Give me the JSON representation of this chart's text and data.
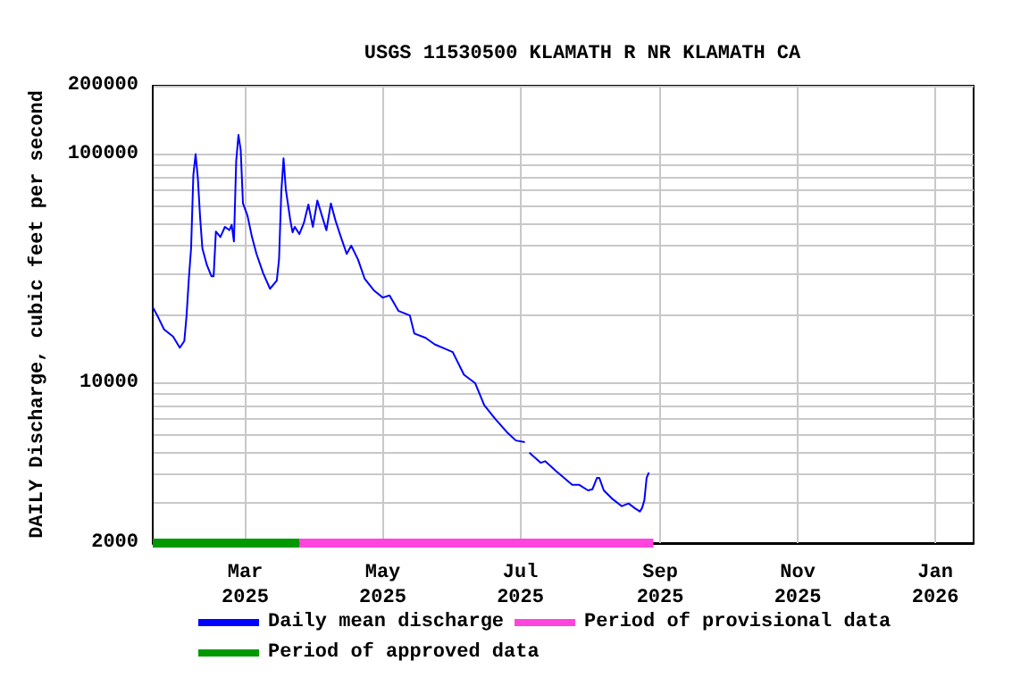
{
  "chart_data": {
    "type": "line",
    "title": "USGS 11530500 KLAMATH R NR KLAMATH CA",
    "ylabel": "DAILY Discharge, cubic feet per second",
    "log": "y",
    "grid": true,
    "legend": "bottom",
    "marker": "none",
    "xlim": [
      "2025-01-19",
      "2026-01-18"
    ],
    "xticks": [
      {
        "value": "2025-03-01",
        "label": "Mar\n2025"
      },
      {
        "value": "2025-05-01",
        "label": "May\n2025"
      },
      {
        "value": "2025-07-01",
        "label": "Jul\n2025"
      },
      {
        "value": "2025-09-01",
        "label": "Sep\n2025"
      },
      {
        "value": "2025-11-01",
        "label": "Nov\n2025"
      },
      {
        "value": "2026-01-01",
        "label": "Jan\n2026"
      }
    ],
    "ylim": [
      2000,
      200000
    ],
    "yticks": [
      2000,
      {
        "value": 3000,
        "label": null
      },
      {
        "value": 4000,
        "label": null
      },
      {
        "value": 5000,
        "label": null
      },
      {
        "value": 6000,
        "label": null
      },
      {
        "value": 7000,
        "label": null
      },
      {
        "value": 8000,
        "label": null
      },
      {
        "value": 9000,
        "label": null
      },
      10000,
      {
        "value": 20000,
        "label": null
      },
      {
        "value": 30000,
        "label": null
      },
      {
        "value": 40000,
        "label": null
      },
      {
        "value": 50000,
        "label": null
      },
      {
        "value": 60000,
        "label": null
      },
      {
        "value": 70000,
        "label": null
      },
      {
        "value": 80000,
        "label": null
      },
      {
        "value": 90000,
        "label": null
      },
      100000,
      200000
    ],
    "series": [
      {
        "name": "Daily mean discharge",
        "color": "#0000ff",
        "x": [
          "2025-01-19",
          "2025-01-21",
          "2025-01-24",
          "2025-01-28",
          "2025-01-31",
          "2025-02-02",
          "2025-02-03",
          "2025-02-04",
          "2025-02-05",
          "2025-02-06",
          "2025-02-07",
          "2025-02-08",
          "2025-02-09",
          "2025-02-10",
          "2025-02-12",
          "2025-02-14",
          "2025-02-15",
          "2025-02-16",
          "2025-02-18",
          "2025-02-20",
          "2025-02-22",
          "2025-02-23",
          "2025-02-24",
          "2025-02-25",
          "2025-02-26",
          "2025-02-27",
          "2025-02-28",
          "2025-03-02",
          "2025-03-04",
          "2025-03-06",
          "2025-03-09",
          "2025-03-12",
          "2025-03-15",
          "2025-03-16",
          "2025-03-17",
          "2025-03-18",
          "2025-03-19",
          "2025-03-21",
          "2025-03-22",
          "2025-03-23",
          "2025-03-25",
          "2025-03-27",
          "2025-03-29",
          "2025-03-31",
          "2025-04-02",
          "2025-04-04",
          "2025-04-06",
          "2025-04-08",
          "2025-04-10",
          "2025-04-12",
          "2025-04-15",
          "2025-04-17",
          "2025-04-20",
          "2025-04-23",
          "2025-04-27",
          "2025-05-01",
          "2025-05-04",
          "2025-05-08",
          "2025-05-13",
          "2025-05-15",
          "2025-05-20",
          "2025-05-24",
          "2025-05-29",
          "2025-06-01",
          "2025-06-06",
          "2025-06-11",
          "2025-06-15",
          "2025-06-20",
          "2025-06-25",
          "2025-06-29",
          "2025-07-03",
          "2025-07-04",
          "2025-07-05",
          "2025-07-10",
          "2025-07-12",
          "2025-07-17",
          "2025-07-24",
          "2025-07-27",
          "2025-07-31",
          "2025-08-02",
          "2025-08-04",
          "2025-08-05",
          "2025-08-07",
          "2025-08-11",
          "2025-08-15",
          "2025-08-18",
          "2025-08-21",
          "2025-08-23",
          "2025-08-24",
          "2025-08-25",
          "2025-08-26",
          "2025-08-27"
        ],
        "values": [
          21500,
          19800,
          17200,
          16000,
          14300,
          15300,
          19800,
          28600,
          38900,
          81200,
          100500,
          78900,
          53200,
          38900,
          32900,
          29400,
          29400,
          46100,
          43600,
          48300,
          46700,
          49300,
          41700,
          93500,
          121900,
          104800,
          61200,
          54100,
          43600,
          36800,
          30200,
          25900,
          28100,
          34800,
          68500,
          96200,
          70500,
          51600,
          45700,
          48300,
          44900,
          50200,
          60500,
          48300,
          63000,
          54100,
          46700,
          61200,
          51600,
          44900,
          36800,
          40000,
          34800,
          28600,
          25500,
          23700,
          24200,
          20700,
          19800,
          16500,
          15800,
          14800,
          14100,
          13700,
          10900,
          10000,
          8020,
          6960,
          6120,
          5620,
          5530,
          null,
          4970,
          4490,
          4560,
          4120,
          3600,
          3600,
          3400,
          3440,
          3860,
          3860,
          3400,
          3110,
          2900,
          2980,
          2830,
          2750,
          2850,
          3080,
          3860,
          4070
        ]
      },
      {
        "name": "Period of provisional data",
        "color": "#ff44dd",
        "x": [
          "2025-03-25",
          "2025-08-29"
        ],
        "values": [
          2000,
          2000
        ]
      },
      {
        "name": "Period of approved data",
        "color": "#009900",
        "x": [
          "2025-01-19",
          "2025-03-25"
        ],
        "values": [
          2000,
          2000
        ]
      }
    ]
  }
}
